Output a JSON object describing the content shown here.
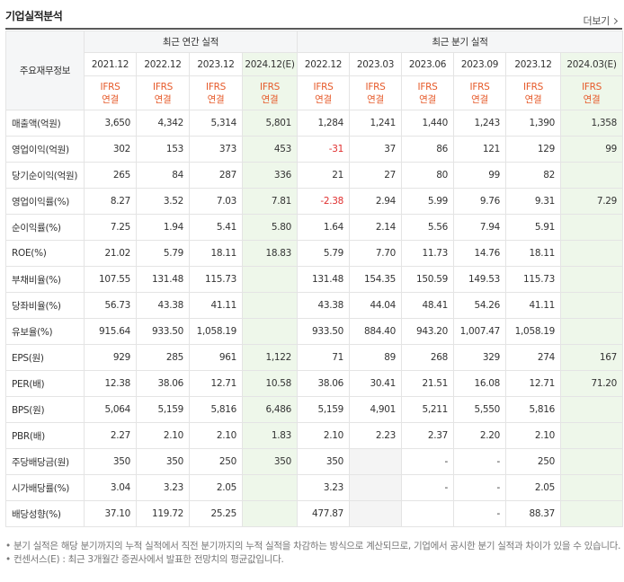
{
  "section_title": "기업실적분석",
  "more_label": "더보기",
  "row_header": "주요재무정보",
  "annual_group": "최근 연간 실적",
  "quarter_group": "최근 분기 실적",
  "periods": [
    {
      "label": "2021.12",
      "std": "IFRS",
      "basis": "연결",
      "estimate": false
    },
    {
      "label": "2022.12",
      "std": "IFRS",
      "basis": "연결",
      "estimate": false
    },
    {
      "label": "2023.12",
      "std": "IFRS",
      "basis": "연결",
      "estimate": false
    },
    {
      "label": "2024.12(E)",
      "std": "IFRS",
      "basis": "연결",
      "estimate": true
    },
    {
      "label": "2022.12",
      "std": "IFRS",
      "basis": "연결",
      "estimate": false
    },
    {
      "label": "2023.03",
      "std": "IFRS",
      "basis": "연결",
      "estimate": false
    },
    {
      "label": "2023.06",
      "std": "IFRS",
      "basis": "연결",
      "estimate": false
    },
    {
      "label": "2023.09",
      "std": "IFRS",
      "basis": "연결",
      "estimate": false
    },
    {
      "label": "2023.12",
      "std": "IFRS",
      "basis": "연결",
      "estimate": false
    },
    {
      "label": "2024.03(E)",
      "std": "IFRS",
      "basis": "연결",
      "estimate": true
    }
  ],
  "rows": [
    {
      "label": "매출액(억원)",
      "values": [
        "3,650",
        "4,342",
        "5,314",
        "5,801",
        "1,284",
        "1,241",
        "1,440",
        "1,243",
        "1,390",
        "1,358"
      ]
    },
    {
      "label": "영업이익(억원)",
      "values": [
        "302",
        "153",
        "373",
        "453",
        "-31",
        "37",
        "86",
        "121",
        "129",
        "99"
      ]
    },
    {
      "label": "당기순이익(억원)",
      "values": [
        "265",
        "84",
        "287",
        "336",
        "21",
        "27",
        "80",
        "99",
        "82",
        ""
      ]
    },
    {
      "label": "영업이익률(%)",
      "values": [
        "8.27",
        "3.52",
        "7.03",
        "7.81",
        "-2.38",
        "2.94",
        "5.99",
        "9.76",
        "9.31",
        "7.29"
      ]
    },
    {
      "label": "순이익률(%)",
      "values": [
        "7.25",
        "1.94",
        "5.41",
        "5.80",
        "1.64",
        "2.14",
        "5.56",
        "7.94",
        "5.91",
        ""
      ]
    },
    {
      "label": "ROE(%)",
      "values": [
        "21.02",
        "5.79",
        "18.11",
        "18.83",
        "5.79",
        "7.70",
        "11.73",
        "14.76",
        "18.11",
        ""
      ]
    },
    {
      "label": "부채비율(%)",
      "values": [
        "107.55",
        "131.48",
        "115.73",
        "",
        "131.48",
        "154.35",
        "150.59",
        "149.53",
        "115.73",
        ""
      ]
    },
    {
      "label": "당좌비율(%)",
      "values": [
        "56.73",
        "43.38",
        "41.11",
        "",
        "43.38",
        "44.04",
        "48.41",
        "54.26",
        "41.11",
        ""
      ]
    },
    {
      "label": "유보율(%)",
      "values": [
        "915.64",
        "933.50",
        "1,058.19",
        "",
        "933.50",
        "884.40",
        "943.20",
        "1,007.47",
        "1,058.19",
        ""
      ]
    },
    {
      "label": "EPS(원)",
      "values": [
        "929",
        "285",
        "961",
        "1,122",
        "71",
        "89",
        "268",
        "329",
        "274",
        "167"
      ]
    },
    {
      "label": "PER(배)",
      "values": [
        "12.38",
        "38.06",
        "12.71",
        "10.58",
        "38.06",
        "30.41",
        "21.51",
        "16.08",
        "12.71",
        "71.20"
      ]
    },
    {
      "label": "BPS(원)",
      "values": [
        "5,064",
        "5,159",
        "5,816",
        "6,486",
        "5,159",
        "4,901",
        "5,211",
        "5,550",
        "5,816",
        ""
      ]
    },
    {
      "label": "PBR(배)",
      "values": [
        "2.27",
        "2.10",
        "2.10",
        "1.83",
        "2.10",
        "2.23",
        "2.37",
        "2.20",
        "2.10",
        ""
      ]
    },
    {
      "label": "주당배당금(원)",
      "values": [
        "350",
        "350",
        "250",
        "350",
        "350",
        "",
        "-",
        "-",
        "250",
        ""
      ]
    },
    {
      "label": "시가배당률(%)",
      "values": [
        "3.04",
        "3.23",
        "2.05",
        "",
        "3.23",
        "",
        "-",
        "-",
        "2.05",
        ""
      ]
    },
    {
      "label": "배당성향(%)",
      "values": [
        "37.10",
        "119.72",
        "25.25",
        "",
        "477.87",
        "",
        "",
        "-",
        "88.37",
        ""
      ]
    }
  ],
  "blank_cells": [
    [
      13,
      5
    ],
    [
      14,
      5
    ],
    [
      15,
      5
    ]
  ],
  "group_breaks": [
    3,
    9,
    13
  ],
  "notes": [
    "분기 실적은 해당 분기까지의 누적 실적에서 직전 분기까지의 누적 실적을 차감하는 방식으로 계산되므로, 기업에서 공시한 분기 실적과 차이가 있을 수 있습니다.",
    "컨센서스(E) : 최근 3개월간 증권사에서 발표한 전망치의 평균값입니다."
  ],
  "colors": {
    "accent": "#e65a2a",
    "negative": "#e03030",
    "estimate_bg": "#eef7ea"
  }
}
